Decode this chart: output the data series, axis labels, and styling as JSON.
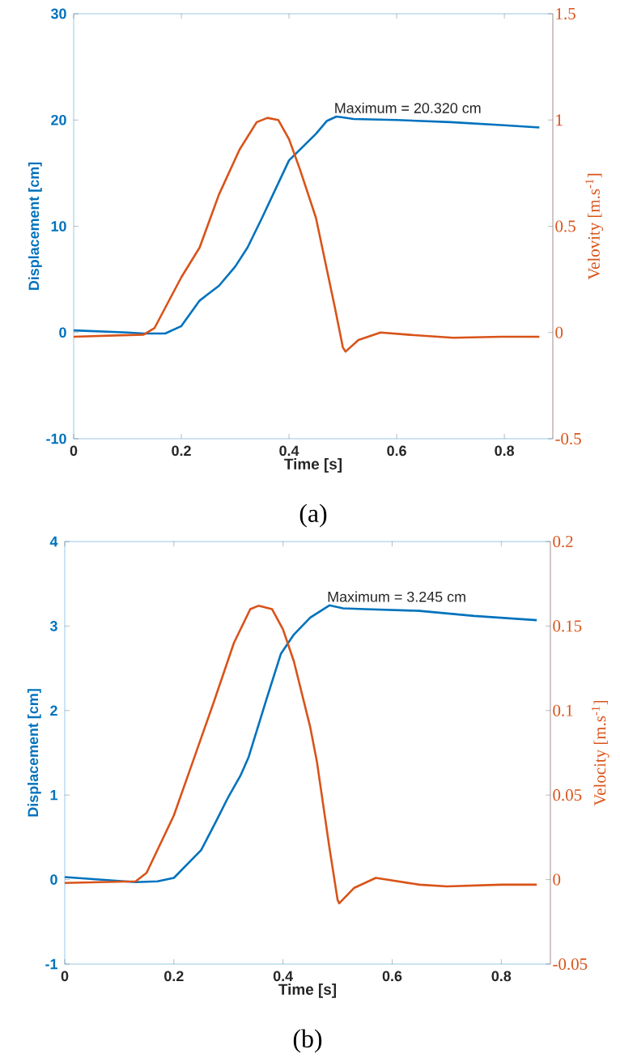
{
  "chart_data": [
    {
      "type": "line",
      "xlabel": "Time [s]",
      "ylabel": "Displacement [cm]",
      "y2label": "Velovity [m.s$^{-1}$]",
      "xlim": [
        0,
        0.89
      ],
      "xticks": [
        0,
        0.2,
        0.4,
        0.6,
        0.8
      ],
      "ylim": [
        -10,
        30
      ],
      "yticks": [
        -10,
        0,
        10,
        20,
        30
      ],
      "y2lim": [
        -0.5,
        1.5
      ],
      "y2ticks": [
        -0.5,
        0,
        0.5,
        1,
        1.5
      ],
      "series": [
        {
          "axis": "y",
          "color": "#0072bd",
          "x": [
            0,
            0.05,
            0.1,
            0.13,
            0.17,
            0.2,
            0.234,
            0.27,
            0.3,
            0.323,
            0.35,
            0.4,
            0.45,
            0.47,
            0.488,
            0.5,
            0.52,
            0.6,
            0.7,
            0.8,
            0.865
          ],
          "values": [
            0.2,
            0.1,
            0.0,
            -0.1,
            -0.1,
            0.6,
            3.0,
            4.4,
            6.2,
            8.0,
            10.8,
            16.2,
            18.7,
            19.9,
            20.32,
            20.25,
            20.1,
            20.0,
            19.8,
            19.5,
            19.3
          ]
        },
        {
          "axis": "y2",
          "color": "#d95319",
          "x": [
            0,
            0.13,
            0.15,
            0.2,
            0.234,
            0.27,
            0.308,
            0.34,
            0.36,
            0.38,
            0.4,
            0.42,
            0.45,
            0.47,
            0.485,
            0.5,
            0.505,
            0.529,
            0.57,
            0.62,
            0.705,
            0.795,
            0.865
          ],
          "values": [
            -0.02,
            -0.01,
            0.02,
            0.26,
            0.4,
            0.65,
            0.86,
            0.99,
            1.01,
            1.0,
            0.91,
            0.77,
            0.54,
            0.3,
            0.12,
            -0.07,
            -0.09,
            -0.035,
            0.0,
            -0.01,
            -0.025,
            -0.02,
            -0.02
          ]
        }
      ],
      "annotations": [
        {
          "text": "Maximum = 20.320 cm",
          "x": 0.488,
          "y": 20.32
        },
        "(a)"
      ]
    },
    {
      "type": "line",
      "xlabel": "Time [s]",
      "ylabel": "Displacement [cm]",
      "y2label": "Velocity [m.s$^{-1}$]",
      "xlim": [
        0,
        0.89
      ],
      "xticks": [
        0,
        0.2,
        0.4,
        0.6,
        0.8
      ],
      "ylim": [
        -1,
        4
      ],
      "yticks": [
        -1,
        0,
        1,
        2,
        3,
        4
      ],
      "y2lim": [
        -0.05,
        0.2
      ],
      "y2ticks": [
        -0.05,
        0,
        0.05,
        0.1,
        0.15,
        0.2
      ],
      "series": [
        {
          "axis": "y",
          "color": "#0072bd",
          "x": [
            0,
            0.13,
            0.17,
            0.2,
            0.25,
            0.279,
            0.3,
            0.322,
            0.337,
            0.37,
            0.396,
            0.42,
            0.45,
            0.485,
            0.51,
            0.55,
            0.65,
            0.75,
            0.865
          ],
          "values": [
            0.03,
            -0.03,
            -0.02,
            0.02,
            0.35,
            0.71,
            0.98,
            1.23,
            1.45,
            2.14,
            2.67,
            2.9,
            3.1,
            3.245,
            3.21,
            3.2,
            3.18,
            3.12,
            3.07
          ]
        },
        {
          "axis": "y2",
          "color": "#d95319",
          "x": [
            0,
            0.13,
            0.15,
            0.2,
            0.235,
            0.272,
            0.31,
            0.34,
            0.355,
            0.38,
            0.4,
            0.42,
            0.45,
            0.462,
            0.485,
            0.5,
            0.503,
            0.53,
            0.57,
            0.65,
            0.7,
            0.8,
            0.865
          ],
          "values": [
            -0.002,
            -0.001,
            0.004,
            0.038,
            0.07,
            0.104,
            0.14,
            0.16,
            0.162,
            0.16,
            0.148,
            0.129,
            0.09,
            0.07,
            0.019,
            -0.012,
            -0.014,
            -0.005,
            0.001,
            -0.003,
            -0.004,
            -0.003,
            -0.003
          ]
        }
      ],
      "annotations": [
        {
          "text": "Maximum = 3.245 cm",
          "x": 0.485,
          "y": 3.245
        },
        "(b)"
      ]
    }
  ]
}
